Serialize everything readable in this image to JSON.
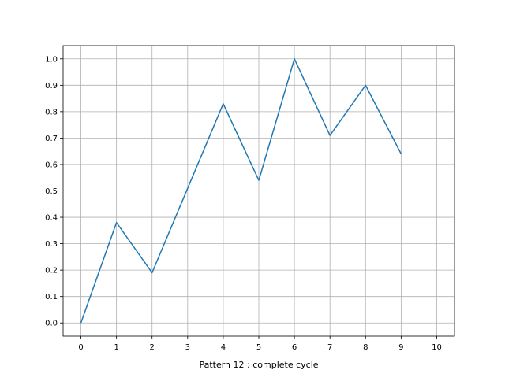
{
  "chart_data": {
    "type": "line",
    "title": "",
    "xlabel": "Pattern 12 : complete cycle",
    "ylabel": "",
    "xlim": [
      -0.5,
      10.5
    ],
    "ylim": [
      -0.05,
      1.05
    ],
    "xticks": [
      0,
      1,
      2,
      3,
      4,
      5,
      6,
      7,
      8,
      9,
      10
    ],
    "xtick_labels": [
      "0",
      "1",
      "2",
      "3",
      "4",
      "5",
      "6",
      "7",
      "8",
      "9",
      "10"
    ],
    "yticks": [
      0.0,
      0.1,
      0.2,
      0.3,
      0.4,
      0.5,
      0.6,
      0.7,
      0.8,
      0.9,
      1.0
    ],
    "ytick_labels": [
      "0.0",
      "0.1",
      "0.2",
      "0.3",
      "0.4",
      "0.5",
      "0.6",
      "0.7",
      "0.8",
      "0.9",
      "1.0"
    ],
    "grid": true,
    "legend": "none",
    "series": [
      {
        "color": "#1f77b4",
        "x": [
          0,
          1,
          2,
          3,
          4,
          5,
          6,
          7,
          8,
          9
        ],
        "y": [
          0.0,
          0.38,
          0.19,
          0.51,
          0.83,
          0.54,
          1.0,
          0.71,
          0.9,
          0.64
        ]
      }
    ]
  }
}
